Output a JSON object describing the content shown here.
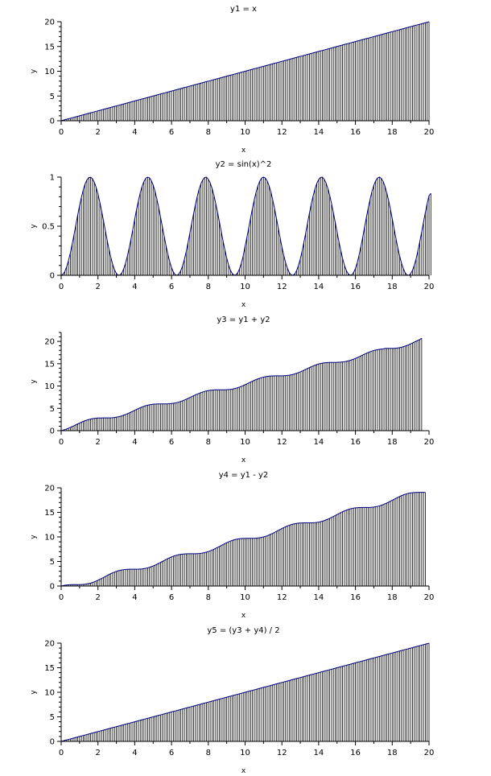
{
  "chart_data": [
    {
      "type": "line",
      "title": "y1 = x",
      "xlabel": "x",
      "ylabel": "y",
      "xlim": [
        0,
        20
      ],
      "ylim": [
        0,
        20
      ],
      "xticks": [
        0,
        2,
        4,
        6,
        8,
        10,
        12,
        14,
        16,
        18,
        20
      ],
      "yticks": [
        0,
        5,
        10,
        15,
        20
      ],
      "yminor": 4,
      "x_start": 0,
      "x_step": 0.1,
      "stems": true,
      "line_color": "#000080",
      "stem_color": "#000000",
      "grid": false,
      "y": [
        0.0,
        0.1,
        0.2,
        0.3,
        0.4,
        0.5,
        0.6,
        0.7,
        0.8,
        0.9,
        1.0,
        1.1,
        1.2,
        1.3,
        1.4,
        1.5,
        1.6,
        1.7,
        1.8,
        1.9,
        2.0,
        2.1,
        2.2,
        2.3,
        2.4,
        2.5,
        2.6,
        2.7,
        2.8,
        2.9,
        3.0,
        3.1,
        3.2,
        3.3,
        3.4,
        3.5,
        3.6,
        3.7,
        3.8,
        3.9,
        4.0,
        4.1,
        4.2,
        4.3,
        4.4,
        4.5,
        4.6,
        4.7,
        4.8,
        4.9,
        5.0,
        5.1,
        5.2,
        5.3,
        5.4,
        5.5,
        5.6,
        5.7,
        5.8,
        5.9,
        6.0,
        6.1,
        6.2,
        6.3,
        6.4,
        6.5,
        6.6,
        6.7,
        6.8,
        6.9,
        7.0,
        7.1,
        7.2,
        7.3,
        7.4,
        7.5,
        7.6,
        7.7,
        7.8,
        7.9,
        8.0,
        8.1,
        8.2,
        8.3,
        8.4,
        8.5,
        8.6,
        8.7,
        8.8,
        8.9,
        9.0,
        9.1,
        9.2,
        9.3,
        9.4,
        9.5,
        9.6,
        9.7,
        9.8,
        9.9,
        10.0,
        10.1,
        10.2,
        10.3,
        10.4,
        10.5,
        10.6,
        10.7,
        10.8,
        10.9,
        11.0,
        11.1,
        11.2,
        11.3,
        11.4,
        11.5,
        11.6,
        11.7,
        11.8,
        11.9,
        12.0,
        12.1,
        12.2,
        12.3,
        12.4,
        12.5,
        12.6,
        12.7,
        12.8,
        12.9,
        13.0,
        13.1,
        13.2,
        13.3,
        13.4,
        13.5,
        13.6,
        13.7,
        13.8,
        13.9,
        14.0,
        14.1,
        14.2,
        14.3,
        14.4,
        14.5,
        14.6,
        14.7,
        14.8,
        14.9,
        15.0,
        15.1,
        15.2,
        15.3,
        15.4,
        15.5,
        15.6,
        15.7,
        15.8,
        15.9,
        16.0,
        16.1,
        16.2,
        16.3,
        16.4,
        16.5,
        16.6,
        16.7,
        16.8,
        16.9,
        17.0,
        17.1,
        17.2,
        17.3,
        17.4,
        17.5,
        17.6,
        17.7,
        17.8,
        17.9,
        18.0,
        18.1,
        18.2,
        18.3,
        18.4,
        18.5,
        18.6,
        18.7,
        18.8,
        18.9,
        19.0,
        19.1,
        19.2,
        19.3,
        19.4,
        19.5,
        19.6,
        19.7,
        19.8,
        19.9,
        20.0
      ]
    },
    {
      "type": "line",
      "title": "y2 = sin(x)^2",
      "xlabel": "x",
      "ylabel": "y",
      "xlim": [
        0,
        20
      ],
      "ylim": [
        0,
        1
      ],
      "xticks": [
        0,
        2,
        4,
        6,
        8,
        10,
        12,
        14,
        16,
        18,
        20
      ],
      "yticks": [
        0,
        0.5,
        1
      ],
      "yminor": 4,
      "x_start": 0,
      "x_step": 0.1,
      "stems": true,
      "line_color": "#000080",
      "stem_color": "#000000",
      "grid": false,
      "y": [
        0.0,
        0.01,
        0.039,
        0.087,
        0.152,
        0.23,
        0.319,
        0.415,
        0.514,
        0.614,
        0.708,
        0.794,
        0.869,
        0.93,
        0.971,
        0.995,
        0.999,
        0.983,
        0.948,
        0.895,
        0.827,
        0.745,
        0.653,
        0.556,
        0.456,
        0.358,
        0.264,
        0.182,
        0.112,
        0.056,
        0.02,
        0.002,
        0.003,
        0.024,
        0.065,
        0.123,
        0.196,
        0.279,
        0.372,
        0.47,
        0.573,
        0.671,
        0.759,
        0.839,
        0.906,
        0.955,
        0.988,
        1.0,
        0.993,
        0.964,
        0.92,
        0.857,
        0.78,
        0.691,
        0.595,
        0.496,
        0.399,
        0.302,
        0.215,
        0.14,
        0.078,
        0.033,
        0.006,
        0.0,
        0.013,
        0.046,
        0.096,
        0.163,
        0.242,
        0.334,
        0.432,
        0.53,
        0.627,
        0.72,
        0.804,
        0.877,
        0.932,
        0.972,
        0.996,
        0.999,
        0.977,
        0.942,
        0.887,
        0.817,
        0.735,
        0.643,
        0.546,
        0.448,
        0.35,
        0.259,
        0.176,
        0.107,
        0.053,
        0.018,
        0.001,
        0.004,
        0.026,
        0.067,
        0.126,
        0.2,
        0.296,
        0.387,
        0.485,
        0.585,
        0.681,
        0.77,
        0.848,
        0.912,
        0.96,
        0.99,
        1.0,
        0.99,
        0.961,
        0.913,
        0.849,
        0.771,
        0.681,
        0.584,
        0.483,
        0.385,
        0.289,
        0.204,
        0.131,
        0.072,
        0.029,
        0.005,
        0.0,
        0.014,
        0.047,
        0.099,
        0.165,
        0.246,
        0.337,
        0.435,
        0.536,
        0.634,
        0.727,
        0.809,
        0.88,
        0.936,
        0.975,
        0.997,
        0.999,
        0.978,
        0.94,
        0.884,
        0.815,
        0.731,
        0.638,
        0.54,
        0.44,
        0.344,
        0.254,
        0.172,
        0.103,
        0.05,
        0.016,
        0.001,
        0.005,
        0.028,
        0.07,
        0.13,
        0.208,
        0.296,
        0.392,
        0.495,
        0.594,
        0.689,
        0.777,
        0.855,
        0.917,
        0.963,
        0.991,
        1.0,
        0.987,
        0.957,
        0.908,
        0.842,
        0.763,
        0.673,
        0.576,
        0.475,
        0.377,
        0.282,
        0.198,
        0.126,
        0.069,
        0.027,
        0.004,
        0.0,
        0.016,
        0.05,
        0.102,
        0.169,
        0.252,
        0.343,
        0.441,
        0.541,
        0.639,
        0.73,
        0.811,
        0.835
      ]
    },
    {
      "type": "line",
      "title": "y3 = y1 + y2",
      "xlabel": "x",
      "ylabel": "y",
      "xlim": [
        0,
        20
      ],
      "ylim": [
        0,
        22
      ],
      "xticks": [
        0,
        2,
        4,
        6,
        8,
        10,
        12,
        14,
        16,
        18,
        20
      ],
      "yticks": [
        0,
        5,
        10,
        15,
        20
      ],
      "yminor": 4,
      "x_start": 0,
      "x_step": 0.1,
      "stems": true,
      "line_color": "#000080",
      "stem_color": "#000000",
      "grid": false,
      "y": [
        0.0,
        0.11,
        0.24,
        0.39,
        0.55,
        0.73,
        0.92,
        1.12,
        1.31,
        1.51,
        1.71,
        1.89,
        2.07,
        2.23,
        2.37,
        2.5,
        2.6,
        2.68,
        2.75,
        2.8,
        2.83,
        2.85,
        2.85,
        2.86,
        2.86,
        2.86,
        2.86,
        2.88,
        2.91,
        2.96,
        3.02,
        3.1,
        3.2,
        3.32,
        3.47,
        3.62,
        3.8,
        3.98,
        4.17,
        4.37,
        4.57,
        4.77,
        4.96,
        5.14,
        5.31,
        5.45,
        5.59,
        5.7,
        5.79,
        5.86,
        5.92,
        5.96,
        5.98,
        5.99,
        6.0,
        6.0,
        6.0,
        6.0,
        6.02,
        6.04,
        6.08,
        6.13,
        6.21,
        6.3,
        6.41,
        6.55,
        6.7,
        6.86,
        7.04,
        7.23,
        7.43,
        7.63,
        7.83,
        8.02,
        8.2,
        8.38,
        8.53,
        8.67,
        8.8,
        8.9,
        8.98,
        9.04,
        9.09,
        9.12,
        9.14,
        9.14,
        9.15,
        9.15,
        9.15,
        9.16,
        9.18,
        9.21,
        9.25,
        9.32,
        9.4,
        9.5,
        9.63,
        9.77,
        9.93,
        10.1,
        10.3,
        10.49,
        10.69,
        10.89,
        11.08,
        11.27,
        11.45,
        11.61,
        11.76,
        11.89,
        12.0,
        12.09,
        12.16,
        12.21,
        12.25,
        12.27,
        12.28,
        12.28,
        12.28,
        12.29,
        12.29,
        12.3,
        12.33,
        12.37,
        12.43,
        12.5,
        12.6,
        12.71,
        12.85,
        13.0,
        13.17,
        13.35,
        13.54,
        13.74,
        13.94,
        14.13,
        14.32,
        14.5,
        14.66,
        14.81,
        14.94,
        15.04,
        15.12,
        15.19,
        15.24,
        15.27,
        15.28,
        15.29,
        15.29,
        15.29,
        15.3,
        15.32,
        15.35,
        15.4,
        15.45,
        15.53,
        15.62,
        15.73,
        15.87,
        16.02,
        16.19,
        16.37,
        16.56,
        16.76,
        16.96,
        17.15,
        17.34,
        17.52,
        17.68,
        17.84,
        17.96,
        18.06,
        18.15,
        18.22,
        18.27,
        18.3,
        18.42,
        18.43,
        18.43,
        18.43,
        18.43,
        18.45,
        18.48,
        18.53,
        18.6,
        18.69,
        18.8,
        18.94,
        19.09,
        19.25,
        19.44,
        19.63,
        19.84,
        20.04,
        20.23,
        20.41,
        20.7
      ]
    },
    {
      "type": "line",
      "title": "y4 = y1 - y2",
      "xlabel": "x",
      "ylabel": "y",
      "xlim": [
        0,
        20
      ],
      "ylim": [
        0,
        20
      ],
      "xticks": [
        0,
        2,
        4,
        6,
        8,
        10,
        12,
        14,
        16,
        18,
        20
      ],
      "yticks": [
        0,
        5,
        10,
        15,
        20
      ],
      "yminor": 4,
      "x_start": 0,
      "x_step": 0.1,
      "stems": true,
      "line_color": "#000080",
      "stem_color": "#000000",
      "grid": false,
      "y": [
        0.0,
        0.09,
        0.16,
        0.21,
        0.25,
        0.27,
        0.28,
        0.29,
        0.29,
        0.29,
        0.29,
        0.31,
        0.33,
        0.37,
        0.43,
        0.51,
        0.6,
        0.72,
        0.85,
        1.0,
        1.17,
        1.36,
        1.55,
        1.74,
        1.94,
        2.14,
        2.34,
        2.52,
        2.69,
        2.84,
        2.98,
        3.1,
        3.2,
        3.28,
        3.33,
        3.38,
        3.4,
        3.42,
        3.43,
        3.43,
        3.43,
        3.43,
        3.44,
        3.46,
        3.49,
        3.55,
        3.61,
        3.7,
        3.81,
        3.94,
        4.08,
        4.24,
        4.42,
        4.61,
        4.81,
        5.0,
        5.2,
        5.4,
        5.58,
        5.76,
        5.92,
        6.07,
        6.19,
        6.3,
        6.39,
        6.45,
        6.5,
        6.54,
        6.56,
        6.57,
        6.57,
        6.57,
        6.57,
        6.58,
        6.6,
        6.62,
        6.67,
        6.73,
        6.8,
        6.9,
        7.02,
        7.16,
        7.31,
        7.48,
        7.67,
        7.86,
        8.05,
        8.25,
        8.45,
        8.64,
        8.82,
        8.99,
        9.15,
        9.28,
        9.4,
        9.5,
        9.57,
        9.63,
        9.67,
        9.7,
        9.7,
        9.71,
        9.71,
        9.71,
        9.72,
        9.73,
        9.75,
        9.79,
        9.84,
        9.91,
        10.0,
        10.11,
        10.24,
        10.39,
        10.55,
        10.73,
        10.92,
        11.12,
        11.32,
        11.51,
        11.71,
        11.9,
        12.07,
        12.23,
        12.37,
        12.5,
        12.6,
        12.69,
        12.75,
        12.8,
        12.83,
        12.85,
        12.86,
        12.86,
        12.86,
        12.86,
        12.87,
        12.89,
        12.92,
        12.96,
        13.02,
        13.1,
        13.2,
        13.32,
        13.46,
        13.61,
        13.78,
        13.96,
        14.16,
        14.36,
        14.56,
        14.75,
        14.95,
        15.13,
        15.3,
        15.45,
        15.58,
        15.7,
        15.79,
        15.87,
        15.92,
        15.95,
        15.98,
        15.99,
        16.0,
        16.0,
        16.0,
        16.01,
        16.02,
        16.05,
        16.09,
        16.15,
        16.22,
        16.32,
        16.43,
        16.57,
        16.73,
        16.89,
        17.07,
        17.27,
        17.46,
        17.66,
        17.86,
        18.05,
        18.23,
        18.4,
        18.55,
        18.68,
        18.8,
        18.89,
        18.96,
        19.0,
        19.04,
        19.06,
        19.07,
        19.07,
        19.07,
        19.07,
        19.06
      ]
    },
    {
      "type": "line",
      "title": "y5 = (y3 + y4) / 2",
      "xlabel": "x",
      "ylabel": "y",
      "xlim": [
        0,
        20
      ],
      "ylim": [
        0,
        20
      ],
      "xticks": [
        0,
        2,
        4,
        6,
        8,
        10,
        12,
        14,
        16,
        18,
        20
      ],
      "yticks": [
        0,
        5,
        10,
        15,
        20
      ],
      "yminor": 4,
      "x_start": 0,
      "x_step": 0.1,
      "stems": true,
      "line_color": "#000080",
      "stem_color": "#000000",
      "grid": false,
      "y": [
        0.0,
        0.1,
        0.2,
        0.3,
        0.4,
        0.5,
        0.6,
        0.7,
        0.8,
        0.9,
        1.0,
        1.1,
        1.2,
        1.3,
        1.4,
        1.5,
        1.6,
        1.7,
        1.8,
        1.9,
        2.0,
        2.1,
        2.2,
        2.3,
        2.4,
        2.5,
        2.6,
        2.7,
        2.8,
        2.9,
        3.0,
        3.1,
        3.2,
        3.3,
        3.4,
        3.5,
        3.6,
        3.7,
        3.8,
        3.9,
        4.0,
        4.1,
        4.2,
        4.3,
        4.4,
        4.5,
        4.6,
        4.7,
        4.8,
        4.9,
        5.0,
        5.1,
        5.2,
        5.3,
        5.4,
        5.5,
        5.6,
        5.7,
        5.8,
        5.9,
        6.0,
        6.1,
        6.2,
        6.3,
        6.4,
        6.5,
        6.6,
        6.7,
        6.8,
        6.9,
        7.0,
        7.1,
        7.2,
        7.3,
        7.4,
        7.5,
        7.6,
        7.7,
        7.8,
        7.9,
        8.0,
        8.1,
        8.2,
        8.3,
        8.4,
        8.5,
        8.6,
        8.7,
        8.8,
        8.9,
        9.0,
        9.1,
        9.2,
        9.3,
        9.4,
        9.5,
        9.6,
        9.7,
        9.8,
        9.9,
        10.0,
        10.1,
        10.2,
        10.3,
        10.4,
        10.5,
        10.6,
        10.7,
        10.8,
        10.9,
        11.0,
        11.1,
        11.2,
        11.3,
        11.4,
        11.5,
        11.6,
        11.7,
        11.8,
        11.9,
        12.0,
        12.1,
        12.2,
        12.3,
        12.4,
        12.5,
        12.6,
        12.7,
        12.8,
        12.9,
        13.0,
        13.1,
        13.2,
        13.3,
        13.4,
        13.5,
        13.6,
        13.7,
        13.8,
        13.9,
        14.0,
        14.1,
        14.2,
        14.3,
        14.4,
        14.5,
        14.6,
        14.7,
        14.8,
        14.9,
        15.0,
        15.1,
        15.2,
        15.3,
        15.4,
        15.5,
        15.6,
        15.7,
        15.8,
        15.9,
        16.0,
        16.1,
        16.2,
        16.3,
        16.4,
        16.5,
        16.6,
        16.7,
        16.8,
        16.9,
        17.0,
        17.1,
        17.2,
        17.3,
        17.4,
        17.5,
        17.6,
        17.7,
        17.8,
        17.9,
        18.0,
        18.1,
        18.2,
        18.3,
        18.4,
        18.5,
        18.6,
        18.7,
        18.8,
        18.9,
        19.0,
        19.1,
        19.2,
        19.3,
        19.4,
        19.5,
        19.6,
        19.7,
        19.8,
        19.9,
        20.0
      ]
    }
  ]
}
